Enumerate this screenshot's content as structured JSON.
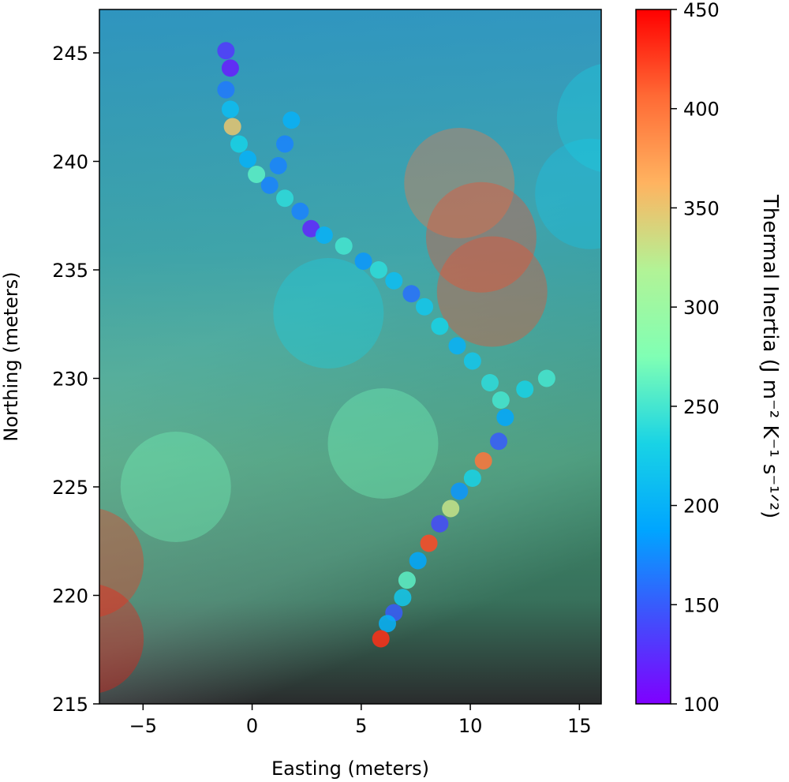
{
  "chart_data": {
    "type": "scatter",
    "xlabel": "Easting (meters)",
    "ylabel": "Northing (meters)",
    "xlim": [
      -7,
      16
    ],
    "ylim": [
      215,
      247
    ],
    "xticks": [
      -5,
      0,
      5,
      10,
      15
    ],
    "yticks": [
      215,
      220,
      225,
      230,
      235,
      240,
      245
    ],
    "grid": false,
    "background": "grayscale terrain image with semi-transparent thermal inertia overlay",
    "colorbar": {
      "label": "Thermal Inertia (J m⁻² K⁻¹ s⁻¹ᐟ²)",
      "range": [
        100,
        450
      ],
      "ticks": [
        100,
        150,
        200,
        250,
        300,
        350,
        400,
        450
      ],
      "colormap": "rainbow"
    },
    "series": [
      {
        "points": [
          {
            "x": -1.2,
            "y": 245.1,
            "ti": 130
          },
          {
            "x": -1.0,
            "y": 244.3,
            "ti": 115
          },
          {
            "x": -1.2,
            "y": 243.3,
            "ti": 165
          },
          {
            "x": -1.0,
            "y": 242.4,
            "ti": 210
          },
          {
            "x": -0.9,
            "y": 241.6,
            "ti": 350
          },
          {
            "x": -0.6,
            "y": 240.8,
            "ti": 230
          },
          {
            "x": -0.2,
            "y": 240.1,
            "ti": 200
          },
          {
            "x": 0.2,
            "y": 239.4,
            "ti": 260
          },
          {
            "x": 0.8,
            "y": 238.9,
            "ti": 170
          },
          {
            "x": 1.5,
            "y": 238.3,
            "ti": 240
          },
          {
            "x": 2.2,
            "y": 237.7,
            "ti": 170
          },
          {
            "x": 2.7,
            "y": 236.9,
            "ti": 120
          },
          {
            "x": 3.3,
            "y": 236.6,
            "ti": 200
          },
          {
            "x": 4.2,
            "y": 236.1,
            "ti": 250
          },
          {
            "x": 5.1,
            "y": 235.4,
            "ti": 180
          },
          {
            "x": 5.8,
            "y": 235.0,
            "ti": 240
          },
          {
            "x": 6.5,
            "y": 234.5,
            "ti": 210
          },
          {
            "x": 7.3,
            "y": 233.9,
            "ti": 160
          },
          {
            "x": 7.9,
            "y": 233.3,
            "ti": 220
          },
          {
            "x": 8.6,
            "y": 232.4,
            "ti": 230
          },
          {
            "x": 9.4,
            "y": 231.5,
            "ti": 200
          },
          {
            "x": 10.1,
            "y": 230.8,
            "ti": 220
          },
          {
            "x": 10.9,
            "y": 229.8,
            "ti": 240
          },
          {
            "x": 11.4,
            "y": 229.0,
            "ti": 250
          },
          {
            "x": 11.6,
            "y": 228.2,
            "ti": 190
          },
          {
            "x": 11.3,
            "y": 227.1,
            "ti": 150
          },
          {
            "x": 10.6,
            "y": 226.2,
            "ti": 400
          },
          {
            "x": 10.1,
            "y": 225.4,
            "ti": 230
          },
          {
            "x": 9.5,
            "y": 224.8,
            "ti": 180
          },
          {
            "x": 9.1,
            "y": 224.0,
            "ti": 330
          },
          {
            "x": 8.6,
            "y": 223.3,
            "ti": 140
          },
          {
            "x": 8.1,
            "y": 222.4,
            "ti": 420
          },
          {
            "x": 7.6,
            "y": 221.6,
            "ti": 190
          },
          {
            "x": 7.1,
            "y": 220.7,
            "ti": 260
          },
          {
            "x": 6.9,
            "y": 219.9,
            "ti": 220
          },
          {
            "x": 6.5,
            "y": 219.2,
            "ti": 150
          },
          {
            "x": 6.2,
            "y": 218.7,
            "ti": 200
          },
          {
            "x": 5.9,
            "y": 218.0,
            "ti": 430
          },
          {
            "x": 1.8,
            "y": 241.9,
            "ti": 200
          },
          {
            "x": 1.5,
            "y": 240.8,
            "ti": 170
          },
          {
            "x": 1.2,
            "y": 239.8,
            "ti": 170
          },
          {
            "x": 12.5,
            "y": 229.5,
            "ti": 230
          },
          {
            "x": 13.5,
            "y": 230.0,
            "ti": 250
          }
        ]
      }
    ],
    "overlay_patches": [
      {
        "x": -7.5,
        "y": 221.5,
        "ti": 430
      },
      {
        "x": -7.5,
        "y": 218.0,
        "ti": 440
      },
      {
        "x": 9.5,
        "y": 239.0,
        "ti": 400
      },
      {
        "x": 10.5,
        "y": 236.5,
        "ti": 420
      },
      {
        "x": 11.0,
        "y": 234.0,
        "ti": 420
      },
      {
        "x": 15.5,
        "y": 238.5,
        "ti": 220
      },
      {
        "x": 16.5,
        "y": 242.0,
        "ti": 230
      },
      {
        "x": 3.5,
        "y": 233.0,
        "ti": 230
      },
      {
        "x": -3.5,
        "y": 225.0,
        "ti": 270
      },
      {
        "x": 6.0,
        "y": 227.0,
        "ti": 270
      }
    ]
  }
}
